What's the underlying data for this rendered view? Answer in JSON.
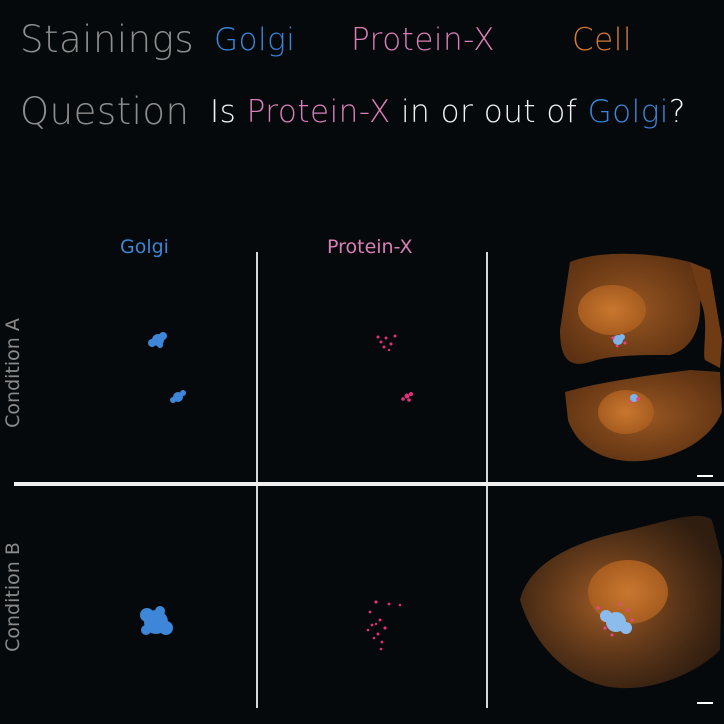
{
  "header": {
    "stainings_label": "Stainings",
    "stain_golgi": "Golgi",
    "stain_protein": "Protein-X",
    "stain_cell": "Cell",
    "question_label": "Question",
    "question_prefix": "Is ",
    "question_protein": "Protein-X",
    "question_middle": " in or out of ",
    "question_golgi": "Golgi",
    "question_suffix": "?"
  },
  "columns": {
    "golgi": "Golgi",
    "protein": "Protein-X"
  },
  "rows": {
    "a": "Condition A",
    "b": "Condition B"
  },
  "colors": {
    "golgi": "#3b86d6",
    "protein": "#d87fb6",
    "cell": "#d27a36",
    "background": "#06090c"
  }
}
